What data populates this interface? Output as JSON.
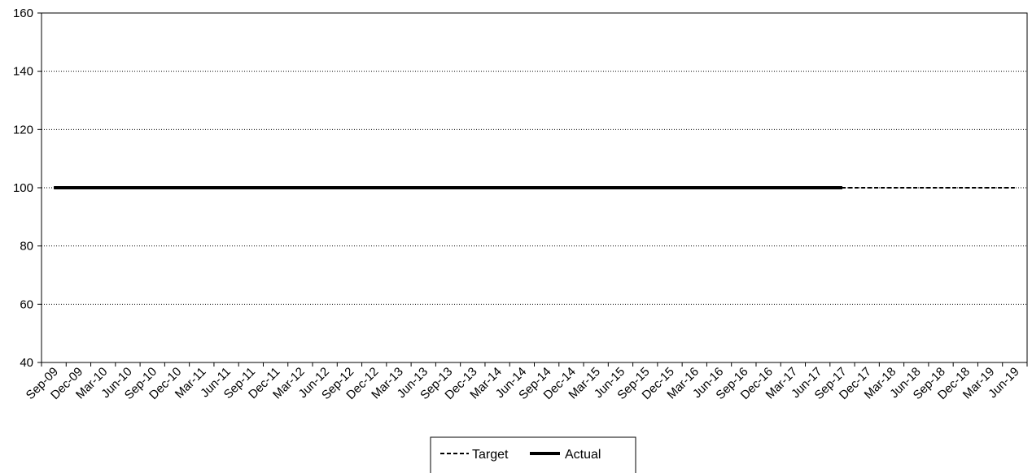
{
  "chart_data": {
    "type": "line",
    "title": "",
    "xlabel": "",
    "ylabel": "",
    "ylim": [
      40,
      160
    ],
    "yticks": [
      40,
      60,
      80,
      100,
      120,
      140,
      160
    ],
    "grid": "horizontal dotted",
    "legend_position": "bottom-center",
    "categories": [
      "Sep-09",
      "Dec-09",
      "Mar-10",
      "Jun-10",
      "Sep-10",
      "Dec-10",
      "Mar-11",
      "Jun-11",
      "Sep-11",
      "Dec-11",
      "Mar-12",
      "Jun-12",
      "Sep-12",
      "Dec-12",
      "Mar-13",
      "Jun-13",
      "Sep-13",
      "Dec-13",
      "Mar-14",
      "Jun-14",
      "Sep-14",
      "Dec-14",
      "Mar-15",
      "Jun-15",
      "Sep-15",
      "Dec-15",
      "Mar-16",
      "Jun-16",
      "Sep-16",
      "Dec-16",
      "Mar-17",
      "Jun-17",
      "Sep-17",
      "Dec-17",
      "Mar-18",
      "Jun-18",
      "Sep-18",
      "Dec-18",
      "Mar-19",
      "Jun-19"
    ],
    "series": [
      {
        "name": "Target",
        "style": "dashed",
        "color": "#000000",
        "values": [
          100,
          100,
          100,
          100,
          100,
          100,
          100,
          100,
          100,
          100,
          100,
          100,
          100,
          100,
          100,
          100,
          100,
          100,
          100,
          100,
          100,
          100,
          100,
          100,
          100,
          100,
          100,
          100,
          100,
          100,
          100,
          100,
          100,
          100,
          100,
          100,
          100,
          100,
          100,
          100
        ]
      },
      {
        "name": "Actual",
        "style": "solid",
        "color": "#000000",
        "values": [
          100,
          100,
          100,
          100,
          100,
          100,
          100,
          100,
          100,
          100,
          100,
          100,
          100,
          100,
          100,
          100,
          100,
          100,
          100,
          100,
          100,
          100,
          100,
          100,
          100,
          100,
          100,
          100,
          100,
          100,
          100,
          100,
          100,
          null,
          null,
          null,
          null,
          null,
          null,
          null
        ]
      }
    ]
  }
}
